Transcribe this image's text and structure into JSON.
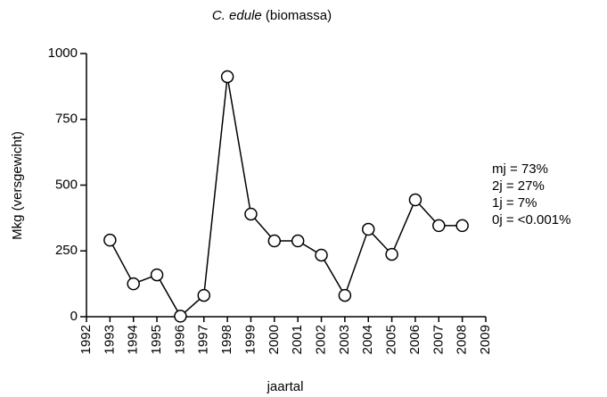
{
  "chart_data": {
    "type": "line",
    "title": {
      "species": "C. edule",
      "text": "(biomassa)"
    },
    "xlabel": "jaartal",
    "ylabel": "Mkg (versgewicht)",
    "x": [
      1993,
      1994,
      1995,
      1996,
      1997,
      1998,
      1999,
      2000,
      2001,
      2002,
      2003,
      2004,
      2005,
      2006,
      2007,
      2008
    ],
    "series": [
      {
        "color": "#000000",
        "values": [
          291,
          125,
          159,
          2,
          81,
          912,
          390,
          288,
          288,
          234,
          81,
          332,
          237,
          444,
          346,
          346
        ]
      }
    ],
    "xlim": [
      1992,
      2009
    ],
    "xticks": [
      1992,
      1993,
      1994,
      1995,
      1996,
      1997,
      1998,
      1999,
      2000,
      2001,
      2002,
      2003,
      2004,
      2005,
      2006,
      2007,
      2008,
      2009
    ],
    "ylim": [
      0,
      1000
    ],
    "yticks": [
      0,
      250,
      500,
      750,
      1000
    ],
    "grid": false,
    "annotations": [
      "mj = 73%",
      "2j = 27%",
      "1j = 7%",
      "0j = <0.001%"
    ]
  }
}
